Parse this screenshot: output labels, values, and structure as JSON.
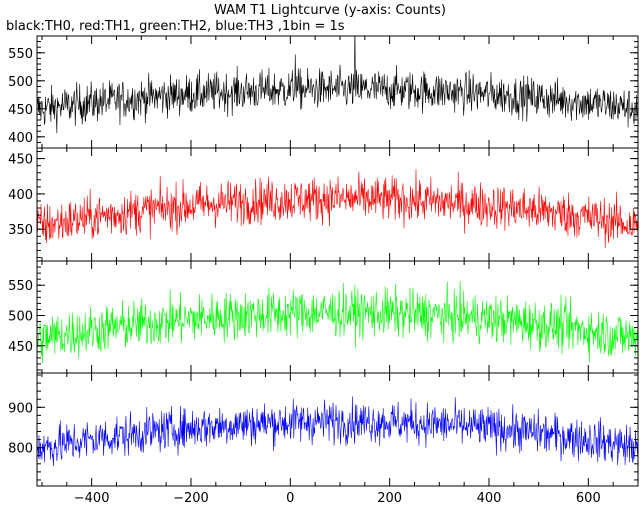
{
  "title": "WAM T1 Lightcurve (y-axis: Counts)",
  "subtitle": "black:TH0, red:TH1, green:TH2, blue:TH3 ,1bin = 1s",
  "chart_data": [
    {
      "type": "line",
      "series": [
        {
          "name": "TH0",
          "color": "#000000",
          "base": 450,
          "peak": 485,
          "noise": 18,
          "outlier": 1
        }
      ],
      "x": {
        "start": -510,
        "end": 700,
        "step": 1
      },
      "xlim": [
        -510,
        700
      ],
      "ylim": [
        380,
        580
      ],
      "yticks": [
        400,
        450,
        500,
        550
      ],
      "yticklabels": [
        "400",
        "450",
        "500",
        "550"
      ],
      "grid": false
    },
    {
      "type": "line",
      "series": [
        {
          "name": "TH1",
          "color": "#ff0000",
          "base": 355,
          "peak": 393,
          "noise": 16,
          "outlier": 0
        }
      ],
      "x": {
        "start": -510,
        "end": 700,
        "step": 1
      },
      "xlim": [
        -510,
        700
      ],
      "ylim": [
        305,
        465
      ],
      "yticks": [
        350,
        400,
        450
      ],
      "yticklabels": [
        "350",
        "400",
        "450"
      ],
      "grid": false
    },
    {
      "type": "line",
      "series": [
        {
          "name": "TH2",
          "color": "#00ff00",
          "base": 462,
          "peak": 505,
          "noise": 20,
          "outlier": 0
        }
      ],
      "x": {
        "start": -510,
        "end": 700,
        "step": 1
      },
      "xlim": [
        -510,
        700
      ],
      "ylim": [
        405,
        590
      ],
      "yticks": [
        450,
        500,
        550
      ],
      "yticklabels": [
        "450",
        "500",
        "550"
      ],
      "grid": false
    },
    {
      "type": "line",
      "series": [
        {
          "name": "TH3",
          "color": "#0000ff",
          "base": 800,
          "peak": 865,
          "noise": 26,
          "outlier": 0
        }
      ],
      "x": {
        "start": -510,
        "end": 700,
        "step": 1
      },
      "xlim": [
        -510,
        700
      ],
      "ylim": [
        705,
        985
      ],
      "yticks": [
        800,
        900
      ],
      "yticklabels": [
        "800",
        "900"
      ],
      "grid": false
    }
  ],
  "xaxis": {
    "xlim": [
      -510,
      700
    ],
    "ticks": [
      -400,
      -200,
      0,
      200,
      400,
      600
    ],
    "ticklabels": [
      "−400",
      "−200",
      "0",
      "200",
      "400",
      "600"
    ]
  }
}
